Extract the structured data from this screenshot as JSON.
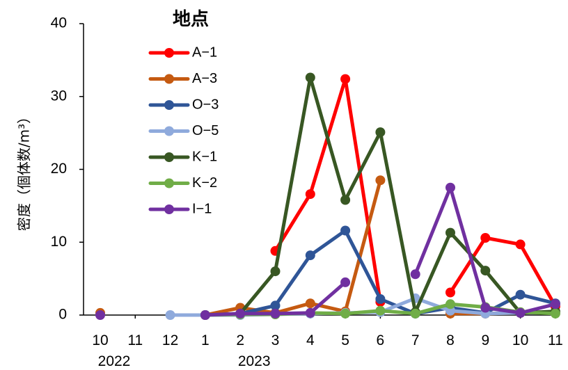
{
  "chart_data": {
    "type": "line",
    "title": "",
    "xlabel": "",
    "ylabel": "密度（個体数/m³）",
    "ylim": [
      0,
      40
    ],
    "yticks": [
      0,
      10,
      20,
      30,
      40
    ],
    "grid": false,
    "categories": [
      "10",
      "11",
      "12",
      "1",
      "2",
      "3",
      "4",
      "5",
      "6",
      "7",
      "8",
      "9",
      "10",
      "11"
    ],
    "year_labels": [
      {
        "text": "2022",
        "category_index": 0
      },
      {
        "text": "2023",
        "category_index": 4
      }
    ],
    "legend": {
      "title": "地点",
      "placement": "top-center"
    },
    "series": [
      {
        "name": "A−1",
        "color": "#ff0000",
        "values": [
          null,
          null,
          null,
          null,
          null,
          8.8,
          16.6,
          32.4,
          1.8,
          null,
          3.1,
          10.6,
          9.7,
          1.2
        ]
      },
      {
        "name": "A−3",
        "color": "#c55a11",
        "values": [
          0.3,
          null,
          null,
          0.0,
          1.0,
          0.3,
          1.6,
          0.5,
          18.5,
          null,
          0.2,
          0.2,
          0.3,
          0.3
        ]
      },
      {
        "name": "O−3",
        "color": "#2f5597",
        "values": [
          null,
          null,
          null,
          0.0,
          0.2,
          1.3,
          8.2,
          11.6,
          2.2,
          0.2,
          1.0,
          0.3,
          2.8,
          1.6
        ]
      },
      {
        "name": "O−5",
        "color": "#8faadc",
        "values": [
          null,
          null,
          0.0,
          0.0,
          0.0,
          0.1,
          0.2,
          0.3,
          0.4,
          2.3,
          0.6,
          0.2,
          0.3,
          0.3
        ]
      },
      {
        "name": "K−1",
        "color": "#385723",
        "values": [
          null,
          null,
          null,
          null,
          0.2,
          6.0,
          32.6,
          15.8,
          25.1,
          0.4,
          11.3,
          6.1,
          0.3,
          0.5
        ]
      },
      {
        "name": "K−2",
        "color": "#70ad47",
        "values": [
          null,
          null,
          null,
          0.0,
          0.1,
          0.1,
          0.3,
          0.2,
          0.6,
          0.2,
          1.5,
          1.1,
          0.4,
          0.2
        ]
      },
      {
        "name": "I−1",
        "color": "#7030a0",
        "values": [
          0.0,
          null,
          null,
          0.0,
          0.2,
          0.2,
          0.3,
          4.5,
          null,
          5.6,
          17.5,
          1.0,
          0.3,
          1.5
        ]
      }
    ]
  }
}
